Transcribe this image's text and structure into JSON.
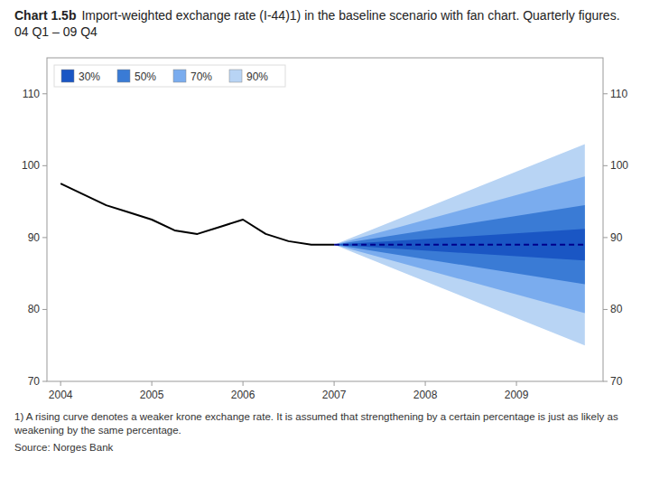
{
  "chart_data": {
    "type": "line",
    "title": "Chart 1.5b",
    "subtitle": "Import-weighted exchange rate (I-44)1) in the baseline scenario with fan chart. Quarterly figures. 04 Q1 – 09 Q4",
    "annotations": [
      "1) A rising curve denotes a weaker krone exchange rate. It is assumed that strengthening by a certain percentage is just as likely as weakening by the same percentage.",
      "Source: Norges Bank"
    ],
    "xlim": [
      2003.85,
      2009.95
    ],
    "xticks": [
      2004,
      2005,
      2006,
      2007,
      2008,
      2009
    ],
    "ylim": [
      70,
      115
    ],
    "yticks": [
      70,
      80,
      90,
      100,
      110
    ],
    "y2lim": [
      70,
      115
    ],
    "y2ticks": [
      70,
      80,
      90,
      100,
      110
    ],
    "grid": false,
    "legend": "upper left",
    "series": [
      {
        "name": "30%",
        "type": "band",
        "color": "#1a56c4",
        "x": [
          2007.0,
          2009.75
        ],
        "lower": [
          89.0,
          86.8
        ],
        "values": [
          89.0,
          91.2
        ]
      },
      {
        "name": "50%",
        "type": "band",
        "color": "#3a7bd5",
        "x": [
          2007.0,
          2009.75
        ],
        "lower": [
          89.0,
          83.5
        ],
        "values": [
          89.0,
          94.5
        ]
      },
      {
        "name": "70%",
        "type": "band",
        "color": "#7aacee",
        "x": [
          2007.0,
          2009.75
        ],
        "lower": [
          89.0,
          79.5
        ],
        "values": [
          89.0,
          98.5
        ]
      },
      {
        "name": "90%",
        "type": "band",
        "color": "#b8d4f4",
        "x": [
          2007.0,
          2009.75
        ],
        "lower": [
          89.0,
          75.0
        ],
        "values": [
          89.0,
          103.0
        ]
      },
      {
        "type": "line",
        "color": "#00008B",
        "line_style": "dashed",
        "x": [
          2007.0,
          2009.75
        ],
        "values": [
          89.0,
          89.0
        ]
      },
      {
        "type": "line",
        "color": "#000000",
        "x": [
          2004.0,
          2004.25,
          2004.5,
          2004.75,
          2005.0,
          2005.25,
          2005.5,
          2005.75,
          2006.0,
          2006.25,
          2006.5,
          2006.75,
          2007.0
        ],
        "values": [
          97.5,
          96.0,
          94.5,
          93.5,
          92.5,
          91.0,
          90.5,
          91.5,
          92.5,
          90.5,
          89.5,
          89.0,
          89.0
        ]
      }
    ]
  }
}
